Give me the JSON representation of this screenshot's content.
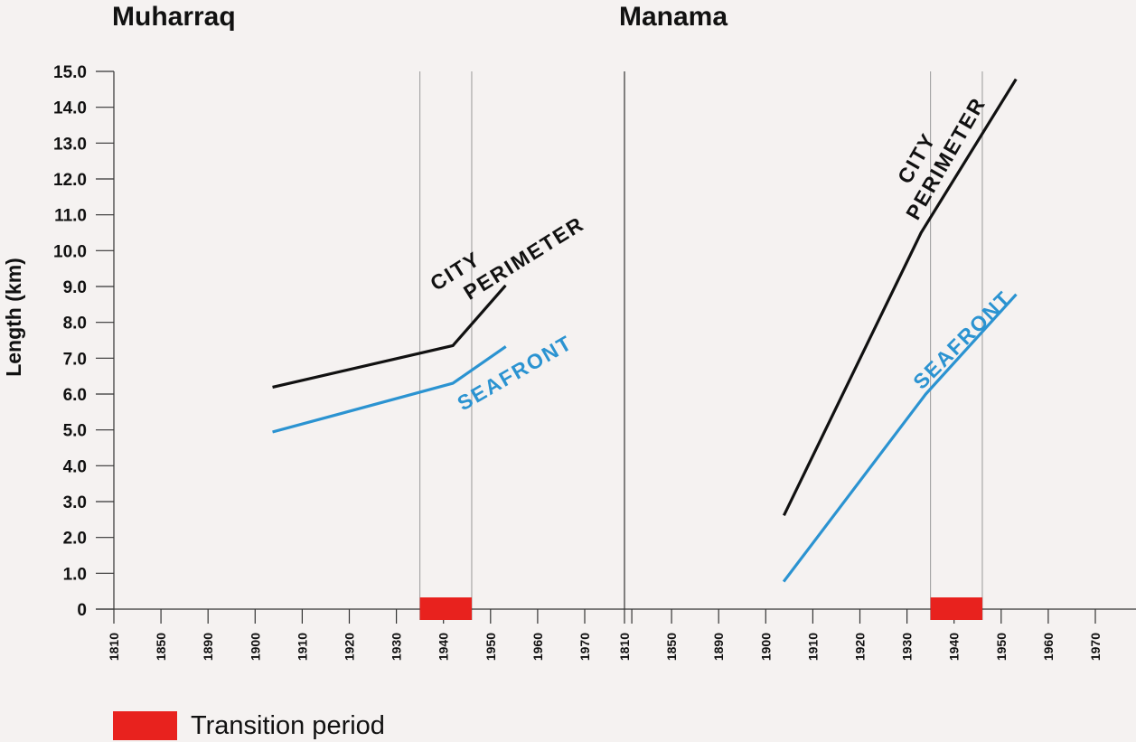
{
  "chart_data": {
    "type": "line",
    "ylabel": "Length (km)",
    "ylim": [
      0,
      15
    ],
    "y_ticks": [
      "0",
      "1.0",
      "2.0",
      "3.0",
      "4.0",
      "5.0",
      "6.0",
      "7.0",
      "8.0",
      "9.0",
      "10.0",
      "11.0",
      "12.0",
      "13.0",
      "14.0",
      "15.0"
    ],
    "x_tick_labels": [
      "1810",
      "1850",
      "1890",
      "1900",
      "1910",
      "1920",
      "1930",
      "1940",
      "1950",
      "1960",
      "1970"
    ],
    "panels": [
      {
        "title": "Muharraq",
        "transition_period": [
          1935,
          1946
        ],
        "series": [
          {
            "name": "CITY PERIMETER",
            "color": "#111111",
            "x": [
              1904,
              1942,
              1953
            ],
            "y": [
              6.2,
              7.35,
              9.0
            ]
          },
          {
            "name": "SEAFRONT",
            "color": "#2b93d1",
            "x": [
              1904,
              1942,
              1953
            ],
            "y": [
              4.95,
              6.3,
              7.3
            ]
          }
        ],
        "annotations": [
          {
            "series": "CITY PERIMETER",
            "line1": "CITY",
            "line2": "PERIMETER"
          },
          {
            "series": "SEAFRONT",
            "line1": "SEAFRONT"
          }
        ]
      },
      {
        "title": "Manama",
        "transition_period": [
          1935,
          1946
        ],
        "series": [
          {
            "name": "CITY PERIMETER",
            "color": "#111111",
            "x": [
              1904,
              1933,
              1953
            ],
            "y": [
              2.65,
              10.5,
              14.75
            ]
          },
          {
            "name": "SEAFRONT",
            "color": "#2b93d1",
            "x": [
              1904,
              1934,
              1953
            ],
            "y": [
              0.8,
              6.0,
              8.75
            ]
          }
        ],
        "annotations": [
          {
            "series": "CITY PERIMETER",
            "line1": "CITY",
            "line2": "PERIMETER"
          },
          {
            "series": "SEAFRONT",
            "line1": "SEAFRONT"
          }
        ]
      }
    ],
    "legend": {
      "label": "Transition period",
      "color": "#e8221e",
      "position": "bottom-left"
    }
  }
}
